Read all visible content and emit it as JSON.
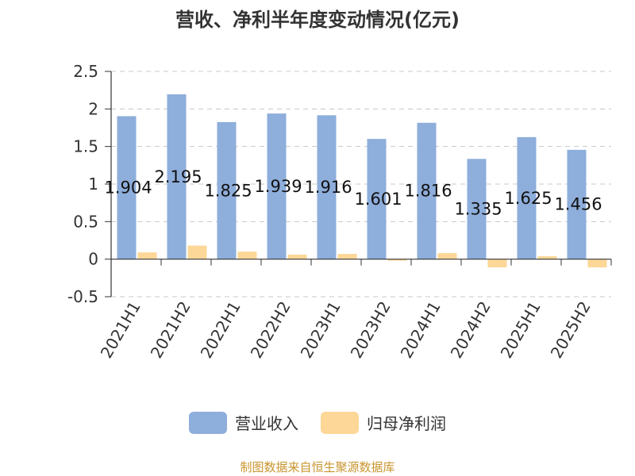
{
  "chart_data": {
    "type": "bar",
    "title": "营收、净利半年度变动情况(亿元)",
    "categories": [
      "2021H1",
      "2021H2",
      "2022H1",
      "2022H2",
      "2023H1",
      "2023H2",
      "2024H1",
      "2024H2",
      "2025H1",
      "2025H2"
    ],
    "series": [
      {
        "name": "营业收入",
        "color": "#8eaedb",
        "values": [
          1.904,
          2.195,
          1.825,
          1.939,
          1.916,
          1.601,
          1.816,
          1.335,
          1.625,
          1.456
        ],
        "labels": [
          "1.904",
          "2.195",
          "1.825",
          "1.939",
          "1.916",
          "1.601",
          "1.816",
          "1.335",
          "1.625",
          "1.456"
        ]
      },
      {
        "name": "归母净利润",
        "color": "#fdd797",
        "values": [
          0.09,
          0.18,
          0.1,
          0.06,
          0.07,
          -0.02,
          0.08,
          -0.11,
          0.04,
          -0.11
        ]
      }
    ],
    "ylim": [
      -0.5,
      2.5
    ],
    "yticks": [
      "2.5",
      "2",
      "1.5",
      "1",
      "0.5",
      "0",
      "-0.5"
    ],
    "grid": true,
    "legend_position": "bottom"
  },
  "footer": {
    "source": "制图数据来自恒生聚源数据库"
  }
}
